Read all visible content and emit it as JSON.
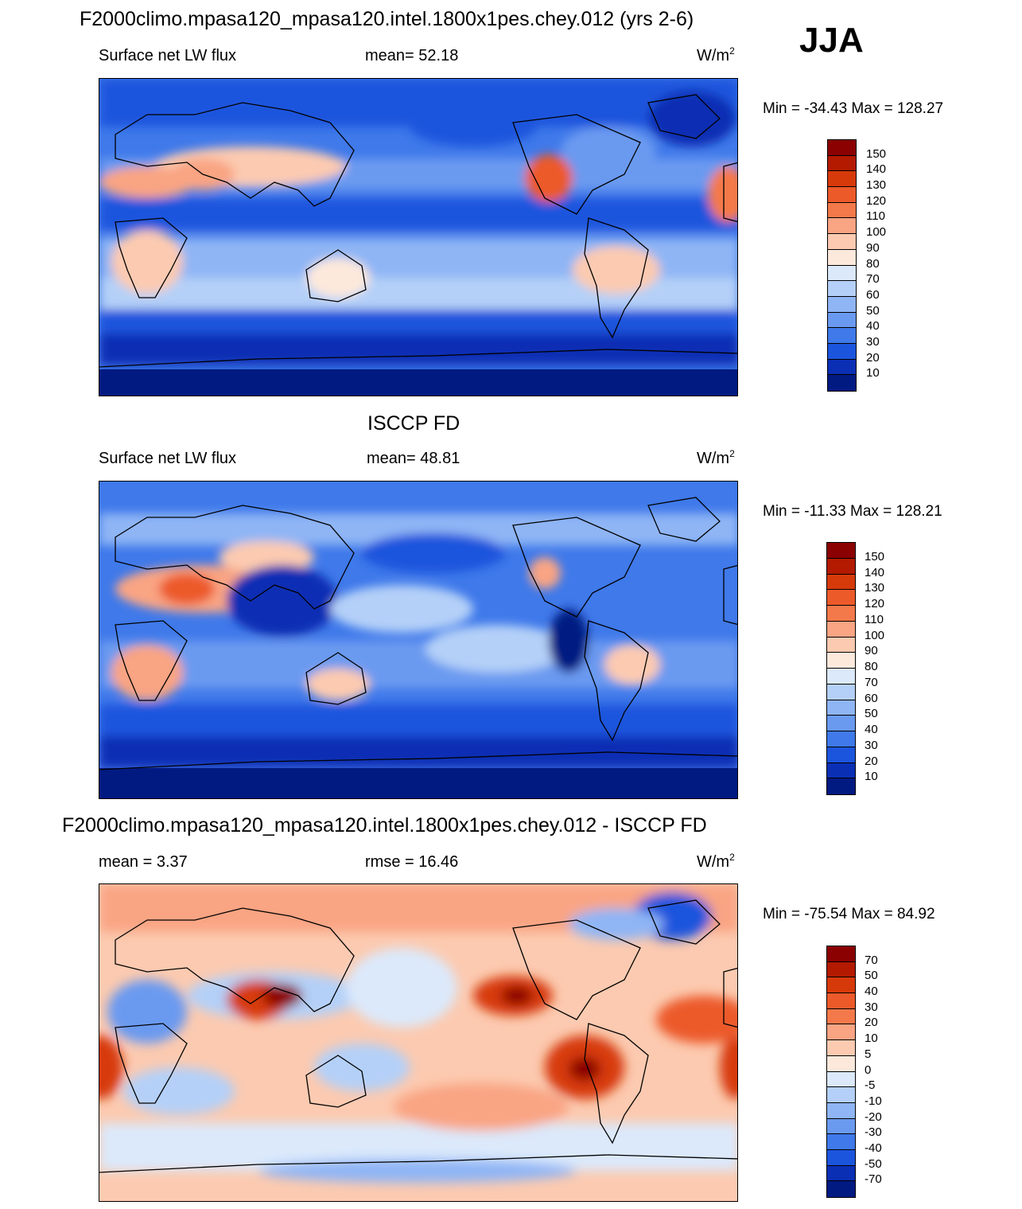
{
  "season": "JJA",
  "units_base": "W/m",
  "units_exp": "2",
  "panels": [
    {
      "id": "model",
      "title": "F2000climo.mpasa120_mpasa120.intel.1800x1pes.chey.012 (yrs 2-6)",
      "left_label": "Surface net LW flux",
      "center_label": "mean=  52.18",
      "minmax": "Min = -34.43 Max = 128.27",
      "colorbar": {
        "labels": [
          "150",
          "140",
          "130",
          "120",
          "110",
          "100",
          "90",
          "80",
          "70",
          "60",
          "50",
          "40",
          "30",
          "20",
          "10"
        ],
        "colors": [
          "#8b0000",
          "#b31a00",
          "#d73a0a",
          "#ec5a2a",
          "#f4794a",
          "#f9a483",
          "#fccab0",
          "#fde9dc",
          "#dbe9fb",
          "#b4d0f8",
          "#8fb5f5",
          "#6a9af0",
          "#3f79ea",
          "#1c55dd",
          "#0a2fb4",
          "#001a82"
        ]
      }
    },
    {
      "id": "obs",
      "title": "ISCCP FD",
      "left_label": "Surface net LW flux",
      "center_label": "mean=  48.81",
      "minmax": "Min = -11.33 Max = 128.21",
      "colorbar": {
        "labels": [
          "150",
          "140",
          "130",
          "120",
          "110",
          "100",
          "90",
          "80",
          "70",
          "60",
          "50",
          "40",
          "30",
          "20",
          "10"
        ],
        "colors": [
          "#8b0000",
          "#b31a00",
          "#d73a0a",
          "#ec5a2a",
          "#f4794a",
          "#f9a483",
          "#fccab0",
          "#fde9dc",
          "#dbe9fb",
          "#b4d0f8",
          "#8fb5f5",
          "#6a9af0",
          "#3f79ea",
          "#1c55dd",
          "#0a2fb4",
          "#001a82"
        ]
      }
    },
    {
      "id": "diff",
      "title": "F2000climo.mpasa120_mpasa120.intel.1800x1pes.chey.012 - ISCCP FD",
      "left_label": "mean =   3.37",
      "center_label": "rmse =  16.46",
      "minmax": "Min = -75.54 Max =  84.92",
      "colorbar": {
        "labels": [
          "70",
          "50",
          "40",
          "30",
          "20",
          "10",
          "5",
          "0",
          "-5",
          "-10",
          "-20",
          "-30",
          "-40",
          "-50",
          "-70"
        ],
        "colors": [
          "#8b0000",
          "#b31a00",
          "#d73a0a",
          "#ec5a2a",
          "#f4794a",
          "#f9a483",
          "#fccab0",
          "#fde9dc",
          "#dbe9fb",
          "#b4d0f8",
          "#8fb5f5",
          "#6a9af0",
          "#3f79ea",
          "#1c55dd",
          "#0a2fb4",
          "#001a82"
        ]
      }
    }
  ]
}
